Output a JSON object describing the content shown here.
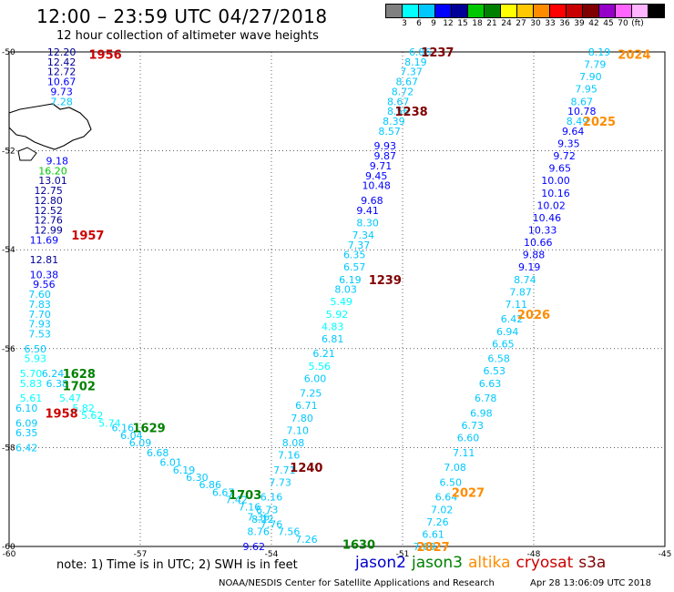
{
  "header": {
    "title": "12:00 – 23:59 UTC 04/27/2018",
    "subtitle": "12 hour collection of altimeter wave heights"
  },
  "legend": {
    "colors": [
      "#808080",
      "#00ffff",
      "#00c8ff",
      "#0000ff",
      "#000096",
      "#00c800",
      "#008000",
      "#ffff00",
      "#ffc800",
      "#ff8c00",
      "#ff0000",
      "#c80000",
      "#800000",
      "#9600c8",
      "#ff64ff",
      "#ffb4ff",
      "#000000"
    ],
    "ticks": [
      "3",
      "6",
      "9",
      "12",
      "15",
      "18",
      "21",
      "24",
      "27",
      "30",
      "33",
      "36",
      "39",
      "42",
      "45",
      "70",
      "(ft)"
    ]
  },
  "note": "note: 1) Time is in UTC; 2) SWH is in feet",
  "satellites": [
    {
      "name": "jason2",
      "color": "#0000cc"
    },
    {
      "name": "jason3",
      "color": "#008000"
    },
    {
      "name": "altika",
      "color": "#ff8c00"
    },
    {
      "name": "cryosat",
      "color": "#cc0000"
    },
    {
      "name": "s3a",
      "color": "#800000"
    }
  ],
  "footer": {
    "credit": "NOAA/NESDIS Center for Satellite Applications and Research",
    "generated": "Apr 28 13:06:09 UTC 2018"
  },
  "chart_data": {
    "type": "scatter",
    "xlim": [
      -60,
      -45
    ],
    "ylim": [
      -60,
      -50
    ],
    "x_ticks": [
      "-60",
      "-57",
      "-54",
      "-51",
      "-48",
      "-45"
    ],
    "y_ticks": [
      "-50",
      "-52",
      "-54",
      "-56",
      "-58",
      "-60"
    ],
    "grid": true,
    "tracks": [
      {
        "points": [
          {
            "lon": -58.8,
            "lat": -50.0,
            "v": "12.20"
          },
          {
            "lon": -58.8,
            "lat": -50.2,
            "v": "12.42"
          },
          {
            "lon": -58.8,
            "lat": -50.4,
            "v": "12.72"
          },
          {
            "lon": -58.8,
            "lat": -50.6,
            "v": "10.67"
          },
          {
            "lon": -58.8,
            "lat": -50.8,
            "v": "9.73"
          },
          {
            "lon": -58.8,
            "lat": -51.0,
            "v": "7.28"
          },
          {
            "lon": -58.9,
            "lat": -52.2,
            "v": "9.18"
          },
          {
            "lon": -59.0,
            "lat": -52.4,
            "v": "16.20"
          },
          {
            "lon": -59.0,
            "lat": -52.6,
            "v": "13.01"
          },
          {
            "lon": -59.1,
            "lat": -52.8,
            "v": "12.75"
          },
          {
            "lon": -59.1,
            "lat": -53.0,
            "v": "12.80"
          },
          {
            "lon": -59.1,
            "lat": -53.2,
            "v": "12.52"
          },
          {
            "lon": -59.1,
            "lat": -53.4,
            "v": "12.76"
          },
          {
            "lon": -59.1,
            "lat": -53.6,
            "v": "12.99"
          },
          {
            "lon": -59.2,
            "lat": -53.8,
            "v": "11.69"
          },
          {
            "lon": -59.2,
            "lat": -54.2,
            "v": "12.81"
          },
          {
            "lon": -59.2,
            "lat": -54.5,
            "v": "10.38"
          },
          {
            "lon": -59.2,
            "lat": -54.7,
            "v": "9.56"
          },
          {
            "lon": -59.3,
            "lat": -54.9,
            "v": "7.60"
          },
          {
            "lon": -59.3,
            "lat": -55.1,
            "v": "7.83"
          },
          {
            "lon": -59.3,
            "lat": -55.3,
            "v": "7.70"
          },
          {
            "lon": -59.3,
            "lat": -55.5,
            "v": "7.93"
          },
          {
            "lon": -59.3,
            "lat": -55.7,
            "v": "7.53"
          },
          {
            "lon": -59.4,
            "lat": -56.0,
            "v": "6.50"
          },
          {
            "lon": -59.4,
            "lat": -56.2,
            "v": "5.93"
          },
          {
            "lon": -59.5,
            "lat": -56.5,
            "v": "5.70"
          },
          {
            "lon": -59.5,
            "lat": -56.7,
            "v": "5.83"
          },
          {
            "lon": -59.5,
            "lat": -57.0,
            "v": "5.61"
          },
          {
            "lon": -59.6,
            "lat": -57.2,
            "v": "6.10"
          },
          {
            "lon": -59.6,
            "lat": -57.5,
            "v": "6.09"
          },
          {
            "lon": -59.6,
            "lat": -57.7,
            "v": "6.35"
          },
          {
            "lon": -59.6,
            "lat": -58.0,
            "v": "6.42"
          }
        ],
        "labels": [
          {
            "lon": -57.8,
            "lat": -50.05,
            "t": "1956",
            "c": "#cc0000"
          },
          {
            "lon": -58.2,
            "lat": -53.7,
            "t": "1957",
            "c": "#cc0000"
          },
          {
            "lon": -58.8,
            "lat": -57.3,
            "t": "1958",
            "c": "#cc0000"
          }
        ]
      },
      {
        "points": [
          {
            "lon": -59.0,
            "lat": -56.5,
            "v": "6.24"
          },
          {
            "lon": -58.9,
            "lat": -56.7,
            "v": "6.38"
          },
          {
            "lon": -58.6,
            "lat": -57.0,
            "v": "5.47"
          },
          {
            "lon": -58.3,
            "lat": -57.2,
            "v": "5.82"
          },
          {
            "lon": -58.1,
            "lat": -57.35,
            "v": "5.62"
          },
          {
            "lon": -57.7,
            "lat": -57.5,
            "v": "5.74"
          },
          {
            "lon": -57.4,
            "lat": -57.6,
            "v": "6.16"
          },
          {
            "lon": -57.2,
            "lat": -57.75,
            "v": "6.04"
          },
          {
            "lon": -57.0,
            "lat": -57.9,
            "v": "6.09"
          },
          {
            "lon": -56.6,
            "lat": -58.1,
            "v": "6.68"
          },
          {
            "lon": -56.3,
            "lat": -58.3,
            "v": "6.01"
          },
          {
            "lon": -56.0,
            "lat": -58.45,
            "v": "6.19"
          },
          {
            "lon": -55.7,
            "lat": -58.6,
            "v": "6.30"
          },
          {
            "lon": -55.4,
            "lat": -58.75,
            "v": "6.86"
          },
          {
            "lon": -55.1,
            "lat": -58.9,
            "v": "6.67"
          },
          {
            "lon": -54.8,
            "lat": -59.05,
            "v": "7.42"
          },
          {
            "lon": -54.5,
            "lat": -59.2,
            "v": "7.16"
          },
          {
            "lon": -54.3,
            "lat": -59.4,
            "v": "7.36"
          },
          {
            "lon": -54.0,
            "lat": -59.55,
            "v": "7.76"
          },
          {
            "lon": -53.6,
            "lat": -59.7,
            "v": "7.56"
          },
          {
            "lon": -53.2,
            "lat": -59.85,
            "v": "7.26"
          }
        ],
        "labels": [
          {
            "lon": -58.4,
            "lat": -56.5,
            "t": "1628",
            "c": "#008000"
          },
          {
            "lon": -58.4,
            "lat": -56.75,
            "t": "1702",
            "c": "#008000"
          },
          {
            "lon": -56.8,
            "lat": -57.6,
            "t": "1629",
            "c": "#008000"
          },
          {
            "lon": -54.6,
            "lat": -58.95,
            "t": "1703",
            "c": "#008000"
          },
          {
            "lon": -52.0,
            "lat": -59.95,
            "t": "1630",
            "c": "#008000"
          }
        ]
      },
      {
        "points": [
          {
            "lon": -50.6,
            "lat": -50.0,
            "v": "6.86"
          },
          {
            "lon": -50.7,
            "lat": -50.2,
            "v": "8.19"
          },
          {
            "lon": -50.8,
            "lat": -50.4,
            "v": "7.37"
          },
          {
            "lon": -50.9,
            "lat": -50.6,
            "v": "8.67"
          },
          {
            "lon": -51.0,
            "lat": -50.8,
            "v": "8.72"
          },
          {
            "lon": -51.1,
            "lat": -51.0,
            "v": "8.67"
          },
          {
            "lon": -51.1,
            "lat": -51.2,
            "v": "8.56"
          },
          {
            "lon": -51.2,
            "lat": -51.4,
            "v": "8.39"
          },
          {
            "lon": -51.3,
            "lat": -51.6,
            "v": "8.57"
          },
          {
            "lon": -51.4,
            "lat": -51.9,
            "v": "9.93"
          },
          {
            "lon": -51.4,
            "lat": -52.1,
            "v": "9.87"
          },
          {
            "lon": -51.5,
            "lat": -52.3,
            "v": "9.71"
          },
          {
            "lon": -51.6,
            "lat": -52.5,
            "v": "9.45"
          },
          {
            "lon": -51.6,
            "lat": -52.7,
            "v": "10.48"
          },
          {
            "lon": -51.7,
            "lat": -53.0,
            "v": "9.68"
          },
          {
            "lon": -51.8,
            "lat": -53.2,
            "v": "9.41"
          },
          {
            "lon": -51.8,
            "lat": -53.45,
            "v": "8.30"
          },
          {
            "lon": -51.9,
            "lat": -53.7,
            "v": "7.34"
          },
          {
            "lon": -52.0,
            "lat": -53.9,
            "v": "7.37"
          },
          {
            "lon": -52.1,
            "lat": -54.1,
            "v": "6.35"
          },
          {
            "lon": -52.1,
            "lat": -54.35,
            "v": "6.57"
          },
          {
            "lon": -52.2,
            "lat": -54.6,
            "v": "6.19"
          },
          {
            "lon": -52.3,
            "lat": -54.8,
            "v": "8.03"
          },
          {
            "lon": -52.4,
            "lat": -55.05,
            "v": "5.49"
          },
          {
            "lon": -52.5,
            "lat": -55.3,
            "v": "5.92"
          },
          {
            "lon": -52.6,
            "lat": -55.55,
            "v": "4.83"
          },
          {
            "lon": -52.6,
            "lat": -55.8,
            "v": "6.81"
          },
          {
            "lon": -52.8,
            "lat": -56.1,
            "v": "6.21"
          },
          {
            "lon": -52.9,
            "lat": -56.35,
            "v": "5.56"
          },
          {
            "lon": -53.0,
            "lat": -56.6,
            "v": "6.00"
          },
          {
            "lon": -53.1,
            "lat": -56.9,
            "v": "7.25"
          },
          {
            "lon": -53.2,
            "lat": -57.15,
            "v": "6.71"
          },
          {
            "lon": -53.3,
            "lat": -57.4,
            "v": "7.80"
          },
          {
            "lon": -53.4,
            "lat": -57.65,
            "v": "7.10"
          },
          {
            "lon": -53.5,
            "lat": -57.9,
            "v": "8.08"
          },
          {
            "lon": -53.6,
            "lat": -58.15,
            "v": "7.16"
          },
          {
            "lon": -53.7,
            "lat": -58.45,
            "v": "7.71"
          },
          {
            "lon": -53.8,
            "lat": -58.7,
            "v": "7.73"
          },
          {
            "lon": -54.0,
            "lat": -59.0,
            "v": "6.16"
          },
          {
            "lon": -54.1,
            "lat": -59.25,
            "v": "6.73"
          },
          {
            "lon": -54.2,
            "lat": -59.45,
            "v": "8.22"
          },
          {
            "lon": -54.3,
            "lat": -59.7,
            "v": "8.76"
          },
          {
            "lon": -54.4,
            "lat": -60.0,
            "v": "9.62"
          }
        ],
        "labels": [
          {
            "lon": -50.2,
            "lat": -50.0,
            "t": "1237",
            "c": "#800000"
          },
          {
            "lon": -50.8,
            "lat": -51.2,
            "t": "1238",
            "c": "#800000"
          },
          {
            "lon": -51.4,
            "lat": -54.6,
            "t": "1239",
            "c": "#800000"
          },
          {
            "lon": -53.2,
            "lat": -58.4,
            "t": "1240",
            "c": "#800000"
          }
        ]
      },
      {
        "points": [
          {
            "lon": -46.5,
            "lat": -50.0,
            "v": "8.19"
          },
          {
            "lon": -46.6,
            "lat": -50.25,
            "v": "7.79"
          },
          {
            "lon": -46.7,
            "lat": -50.5,
            "v": "7.90"
          },
          {
            "lon": -46.8,
            "lat": -50.75,
            "v": "7.95"
          },
          {
            "lon": -46.9,
            "lat": -51.0,
            "v": "8.67"
          },
          {
            "lon": -46.9,
            "lat": -51.2,
            "v": "10.78"
          },
          {
            "lon": -47.0,
            "lat": -51.4,
            "v": "8.49"
          },
          {
            "lon": -47.1,
            "lat": -51.6,
            "v": "9.64"
          },
          {
            "lon": -47.2,
            "lat": -51.85,
            "v": "9.35"
          },
          {
            "lon": -47.3,
            "lat": -52.1,
            "v": "9.72"
          },
          {
            "lon": -47.4,
            "lat": -52.35,
            "v": "9.65"
          },
          {
            "lon": -47.5,
            "lat": -52.6,
            "v": "10.00"
          },
          {
            "lon": -47.5,
            "lat": -52.85,
            "v": "10.16"
          },
          {
            "lon": -47.6,
            "lat": -53.1,
            "v": "10.02"
          },
          {
            "lon": -47.7,
            "lat": -53.35,
            "v": "10.46"
          },
          {
            "lon": -47.8,
            "lat": -53.6,
            "v": "10.33"
          },
          {
            "lon": -47.9,
            "lat": -53.85,
            "v": "10.66"
          },
          {
            "lon": -48.0,
            "lat": -54.1,
            "v": "9.88"
          },
          {
            "lon": -48.1,
            "lat": -54.35,
            "v": "9.19"
          },
          {
            "lon": -48.2,
            "lat": -54.6,
            "v": "8.74"
          },
          {
            "lon": -48.3,
            "lat": -54.85,
            "v": "7.87"
          },
          {
            "lon": -48.4,
            "lat": -55.1,
            "v": "7.11"
          },
          {
            "lon": -48.5,
            "lat": -55.4,
            "v": "6.42"
          },
          {
            "lon": -48.6,
            "lat": -55.65,
            "v": "6.94"
          },
          {
            "lon": -48.7,
            "lat": -55.9,
            "v": "6.65"
          },
          {
            "lon": -48.8,
            "lat": -56.2,
            "v": "6.58"
          },
          {
            "lon": -48.9,
            "lat": -56.45,
            "v": "6.53"
          },
          {
            "lon": -49.0,
            "lat": -56.7,
            "v": "6.63"
          },
          {
            "lon": -49.1,
            "lat": -57.0,
            "v": "6.78"
          },
          {
            "lon": -49.2,
            "lat": -57.3,
            "v": "6.98"
          },
          {
            "lon": -49.4,
            "lat": -57.55,
            "v": "6.73"
          },
          {
            "lon": -49.5,
            "lat": -57.8,
            "v": "6.60"
          },
          {
            "lon": -49.6,
            "lat": -58.1,
            "v": "7.11"
          },
          {
            "lon": -49.8,
            "lat": -58.4,
            "v": "7.08"
          },
          {
            "lon": -49.9,
            "lat": -58.7,
            "v": "6.50"
          },
          {
            "lon": -50.0,
            "lat": -59.0,
            "v": "6.64"
          },
          {
            "lon": -50.1,
            "lat": -59.25,
            "v": "7.02"
          },
          {
            "lon": -50.2,
            "lat": -59.5,
            "v": "7.26"
          },
          {
            "lon": -50.3,
            "lat": -59.75,
            "v": "6.61"
          },
          {
            "lon": -50.5,
            "lat": -60.0,
            "v": "7.09"
          }
        ],
        "labels": [
          {
            "lon": -45.7,
            "lat": -50.05,
            "t": "2024",
            "c": "#ff8c00"
          },
          {
            "lon": -46.5,
            "lat": -51.4,
            "t": "2025",
            "c": "#ff8c00"
          },
          {
            "lon": -48.0,
            "lat": -55.3,
            "t": "2026",
            "c": "#ff8c00"
          },
          {
            "lon": -49.5,
            "lat": -58.9,
            "t": "2027",
            "c": "#ff8c00"
          },
          {
            "lon": -50.3,
            "lat": -60.0,
            "t": "2027",
            "c": "#ff8c00"
          }
        ]
      }
    ]
  }
}
